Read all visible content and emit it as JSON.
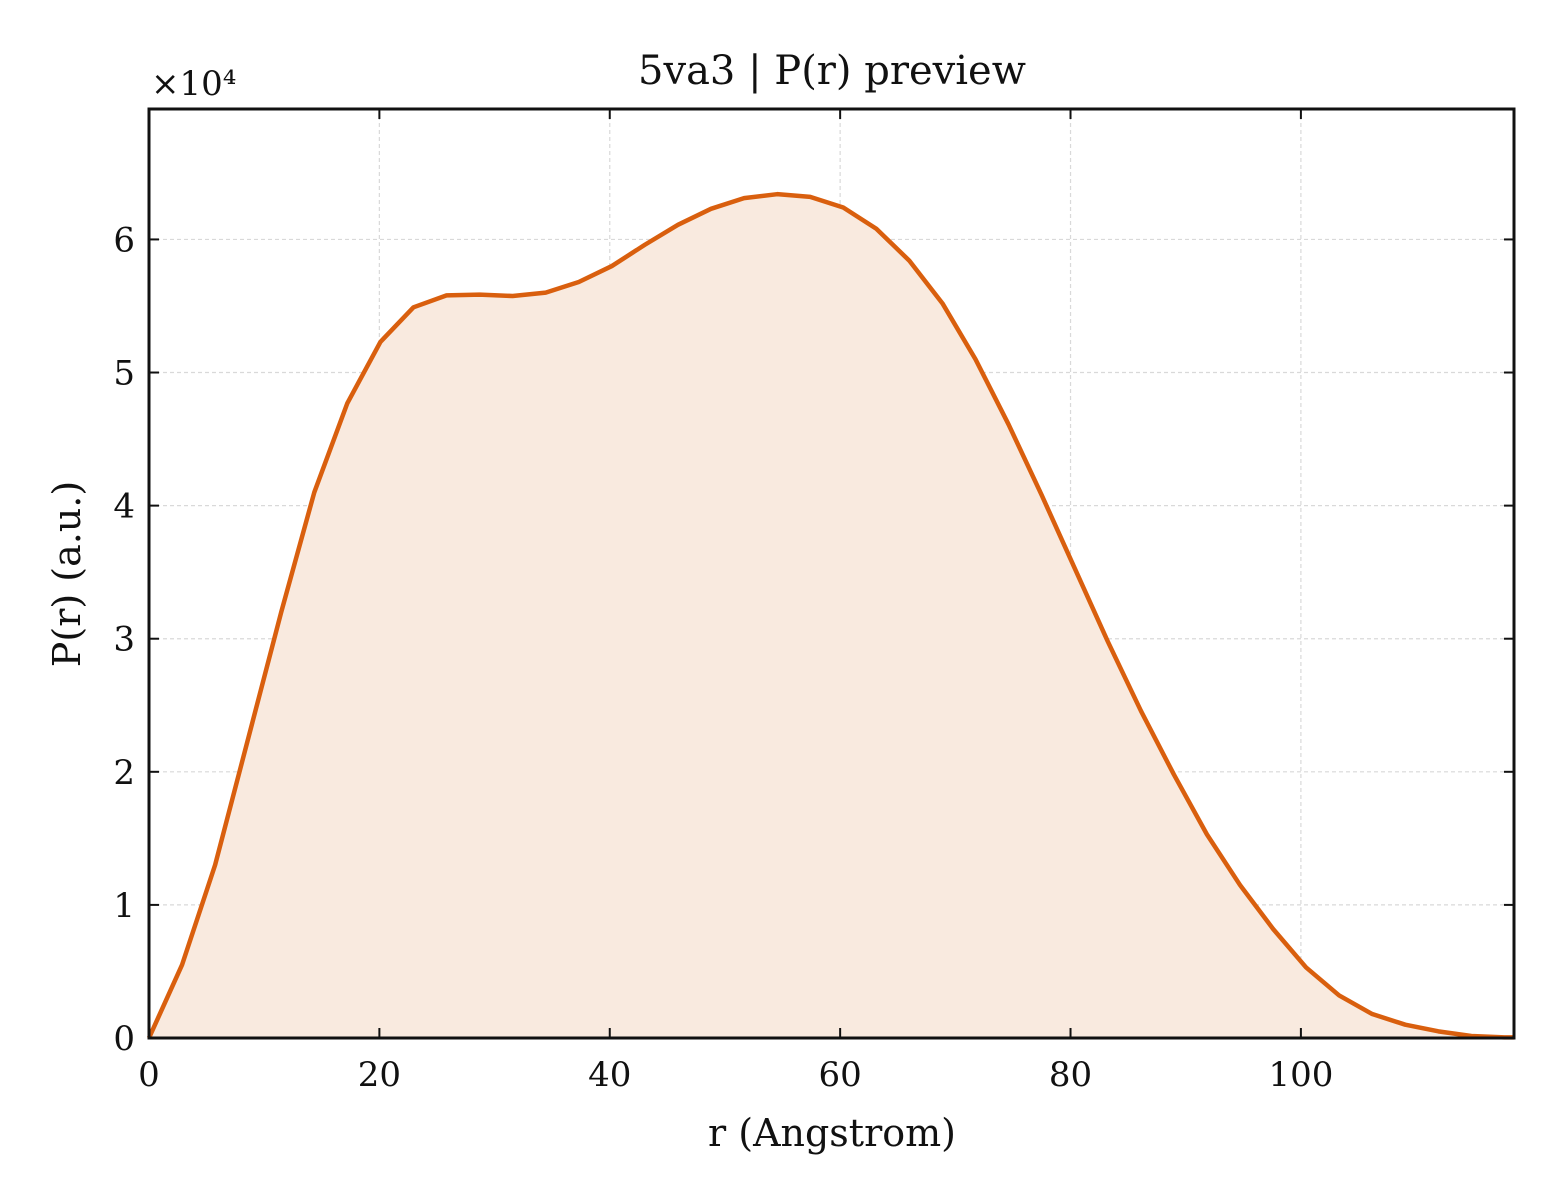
{
  "chart_data": {
    "type": "area",
    "title": "5va3 | P(r) preview",
    "xlabel": "r (Angstrom)",
    "ylabel": "P(r) (a.u.)",
    "y_scale_label": "×10⁴",
    "y_scale_factor": 10000,
    "xlim": [
      0,
      118.5
    ],
    "ylim": [
      0,
      69800
    ],
    "x_ticks": [
      0,
      20,
      40,
      60,
      80,
      100
    ],
    "y_ticks": [
      0,
      10000,
      20000,
      30000,
      40000,
      50000,
      60000
    ],
    "y_tick_labels": [
      "0",
      "1",
      "2",
      "3",
      "4",
      "5",
      "6"
    ],
    "grid": true,
    "colors": {
      "line": "#d95f0e",
      "fill": "#f9eadf",
      "grid": "#d9d9d9",
      "axis": "#111111"
    },
    "series": [
      {
        "x": [
          0,
          2.87,
          5.74,
          8.61,
          11.48,
          14.35,
          17.22,
          20.09,
          22.96,
          25.83,
          28.7,
          31.57,
          34.44,
          37.31,
          40.18,
          43.05,
          45.92,
          48.79,
          51.66,
          54.53,
          57.4,
          60.27,
          63.14,
          66.01,
          68.88,
          71.75,
          74.62,
          77.49,
          80.36,
          83.23,
          86.1,
          88.97,
          91.84,
          94.71,
          97.58,
          100.45,
          103.32,
          106.19,
          109.06,
          111.93,
          114.8,
          117.67
        ],
        "values": [
          0,
          5500,
          13000,
          22500,
          32000,
          41000,
          47700,
          52300,
          54900,
          55800,
          55850,
          55750,
          56000,
          56800,
          58000,
          59600,
          61100,
          62300,
          63100,
          63400,
          63200,
          62400,
          60800,
          58400,
          55200,
          51000,
          46100,
          40800,
          35300,
          29800,
          24600,
          19800,
          15300,
          11500,
          8200,
          5300,
          3200,
          1800,
          1000,
          500,
          150,
          50
        ]
      }
    ]
  }
}
